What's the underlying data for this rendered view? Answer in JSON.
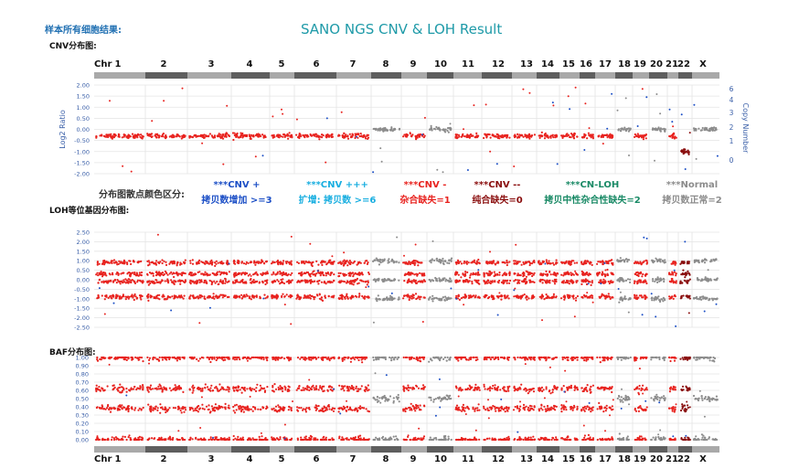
{
  "header": {
    "left_label": "样本所有细胞结果:",
    "title": "SANO NGS CNV & LOH Result"
  },
  "sections": {
    "cnv": "CNV分布图:",
    "loh": "LOH等位基因分布图:",
    "baf": "BAF分布图:"
  },
  "legend": {
    "label": "分布图散点颜色区分:",
    "items": [
      {
        "line1": "***CNV +",
        "line2": "拷贝数增加 >=3",
        "color": "#1c4fc6"
      },
      {
        "line1": "***CNV +++",
        "line2": "扩增: 拷贝数 >=6",
        "color": "#18aee0"
      },
      {
        "line1": "***CNV -",
        "line2": "杂合缺失=1",
        "color": "#e8231f"
      },
      {
        "line1": "***CNV --",
        "line2": "纯合缺失=0",
        "color": "#8a0e0e"
      },
      {
        "line1": "***CN-LOH",
        "line2": "拷贝中性杂合性缺失=2",
        "color": "#1a8a66"
      },
      {
        "line1": "***Normal",
        "line2": "拷贝数正常=2",
        "color": "#8c8c8c"
      }
    ]
  },
  "chart_data": {
    "type": "scatter",
    "chr_label": "Chr",
    "chromosomes": [
      "1",
      "2",
      "3",
      "4",
      "5",
      "6",
      "7",
      "8",
      "9",
      "10",
      "11",
      "12",
      "13",
      "14",
      "15",
      "16",
      "17",
      "18",
      "19",
      "20",
      "21",
      "22",
      "X"
    ],
    "chromosome_status": [
      "del",
      "del",
      "del",
      "del",
      "del",
      "del",
      "del",
      "normal",
      "del",
      "normal",
      "del",
      "del",
      "del",
      "del",
      "del",
      "del",
      "del",
      "normal",
      "del",
      "normal",
      "del",
      "homdel",
      "normal"
    ],
    "colors": {
      "del": "#e8231f",
      "normal": "#8c8c8c",
      "gain": "#1c4fc6",
      "homdel": "#8a0e0e"
    },
    "panels": [
      {
        "name": "CNV",
        "ylabel": "Log2 Ratio",
        "yticks": [
          "2.00",
          "1.50",
          "1.00",
          "0.50",
          "0.00",
          "-0.50",
          "-1.00",
          "-1.50",
          "-2.00"
        ],
        "ylim": [
          -2,
          2
        ],
        "y2label": "Copy Number",
        "y2ticks": [
          "6",
          "4",
          "3",
          "2",
          "1",
          "0"
        ],
        "levels": {
          "del": -0.3,
          "normal": 0.0,
          "homdel": -1.0
        }
      },
      {
        "name": "LOH",
        "yticks": [
          "2.50",
          "2.00",
          "1.50",
          "1.00",
          "0.50",
          "0.00",
          "-0.50",
          "-1.00",
          "-1.50",
          "-2.00",
          "-2.50"
        ],
        "ylim": [
          -2.5,
          2.5
        ],
        "levels_del": [
          0.9,
          0.3,
          -0.1,
          -0.9
        ],
        "levels_normal": [
          1.0,
          0.0,
          -1.0
        ]
      },
      {
        "name": "BAF",
        "yticks": [
          "1.00",
          "0.90",
          "0.80",
          "0.70",
          "0.60",
          "0.50",
          "0.40",
          "0.30",
          "0.20",
          "0.10",
          "0.00"
        ],
        "ylim": [
          0,
          1
        ],
        "levels_del": [
          1.0,
          0.62,
          0.38,
          0.0
        ],
        "levels_normal": [
          1.0,
          0.5,
          0.0
        ]
      }
    ]
  }
}
